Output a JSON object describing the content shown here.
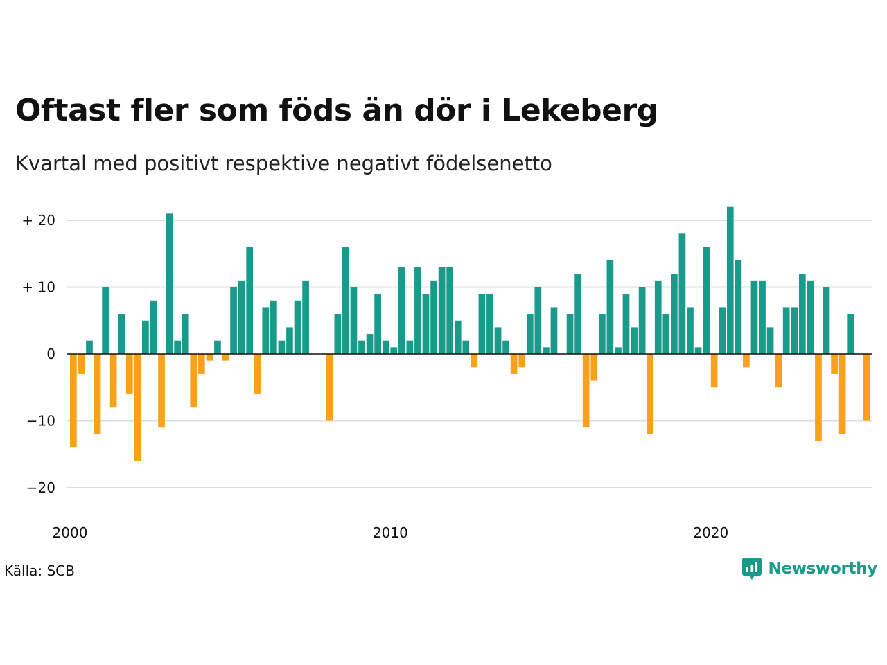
{
  "title": "Oftast fler som föds än dör i Lekeberg",
  "subtitle": "Kvartal med positivt respektive negativt födelsenetto",
  "source": "Källa: SCB",
  "brand": {
    "name": "Newsworthy",
    "icon": "newsworthy-logo-icon",
    "color": "#1a9a8a"
  },
  "colors": {
    "positive": "#1a9a8a",
    "negative": "#f8a11c",
    "grid": "#dddddd",
    "zero_line": "#111111"
  },
  "chart_data": {
    "type": "bar",
    "title": "Oftast fler som föds än dör i Lekeberg",
    "subtitle": "Kvartal med positivt respektive negativt födelsenetto",
    "x_start": "2000 Q1",
    "x_ticks": [
      "2000",
      "2010",
      "2020"
    ],
    "y_ticks": [
      20,
      10,
      0,
      -10,
      -20
    ],
    "y_tick_labels": [
      "+ 20",
      "+ 10",
      "0",
      "−10",
      "−20"
    ],
    "ylim": [
      -23,
      22
    ],
    "grid": true,
    "values": [
      -14,
      -3,
      2,
      -12,
      10,
      -8,
      6,
      -6,
      -16,
      5,
      8,
      -11,
      21,
      2,
      6,
      -8,
      -3,
      -1,
      2,
      -1,
      10,
      11,
      16,
      -6,
      7,
      8,
      2,
      4,
      8,
      11,
      0,
      0,
      -10,
      6,
      16,
      10,
      2,
      3,
      9,
      2,
      1,
      13,
      2,
      13,
      9,
      11,
      13,
      13,
      5,
      2,
      -2,
      9,
      9,
      4,
      2,
      -3,
      -2,
      6,
      10,
      1,
      7,
      0,
      6,
      12,
      -11,
      -4,
      6,
      14,
      1,
      9,
      4,
      10,
      -12,
      11,
      6,
      12,
      18,
      7,
      1,
      16,
      -5,
      7,
      22,
      14,
      -2,
      11,
      11,
      4,
      -5,
      7,
      7,
      12,
      11,
      -13,
      10,
      -3,
      -12,
      6,
      0,
      -10
    ]
  }
}
